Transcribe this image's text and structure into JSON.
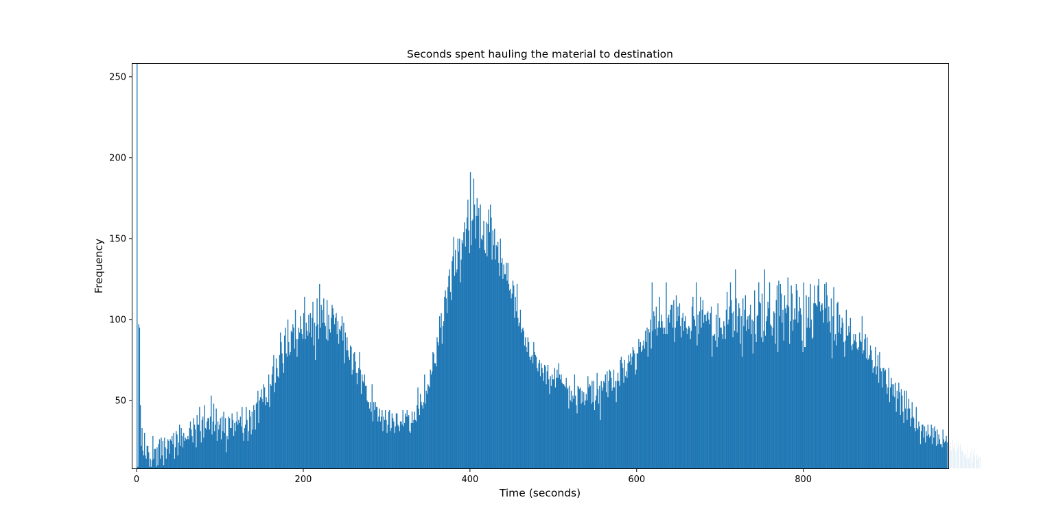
{
  "chart_data": {
    "type": "bar",
    "title": "Seconds spent hauling the material to destination",
    "xlabel": "Time (seconds)",
    "ylabel": "Frequency",
    "xlim": [
      -5,
      974
    ],
    "ylim": [
      8,
      258
    ],
    "xticks": [
      0,
      200,
      400,
      600,
      800
    ],
    "yticks": [
      50,
      100,
      150,
      200,
      250
    ],
    "grid": false,
    "legend": "none",
    "bar_color": "#1f77b4",
    "bin_width_seconds": 1,
    "x_start": 0,
    "x_end": 973,
    "values": [
      258,
      9,
      97,
      95,
      47,
      22,
      33,
      19,
      16,
      30,
      16,
      14,
      22,
      22,
      18,
      9,
      14,
      9,
      13,
      28,
      14,
      20,
      20,
      9,
      21,
      10,
      23,
      26,
      14,
      27,
      16,
      25,
      10,
      27,
      21,
      14,
      20,
      26,
      25,
      17,
      26,
      25,
      28,
      23,
      30,
      14,
      21,
      31,
      29,
      16,
      24,
      35,
      22,
      33,
      28,
      21,
      30,
      25,
      27,
      26,
      26,
      28,
      26,
      33,
      37,
      32,
      28,
      24,
      39,
      35,
      32,
      21,
      41,
      35,
      35,
      46,
      31,
      24,
      38,
      40,
      27,
      47,
      33,
      32,
      37,
      39,
      39,
      32,
      40,
      53,
      29,
      37,
      48,
      31,
      35,
      45,
      25,
      37,
      32,
      35,
      39,
      26,
      40,
      31,
      43,
      30,
      39,
      18,
      28,
      26,
      40,
      39,
      33,
      33,
      42,
      38,
      28,
      36,
      31,
      37,
      43,
      35,
      38,
      36,
      40,
      34,
      46,
      30,
      25,
      33,
      35,
      46,
      38,
      25,
      31,
      44,
      40,
      29,
      43,
      32,
      47,
      44,
      32,
      48,
      49,
      56,
      36,
      50,
      52,
      57,
      51,
      49,
      60,
      58,
      47,
      52,
      49,
      49,
      66,
      46,
      60,
      59,
      66,
      71,
      78,
      55,
      61,
      76,
      70,
      65,
      64,
      78,
      92,
      86,
      79,
      73,
      67,
      90,
      95,
      79,
      77,
      100,
      86,
      78,
      80,
      93,
      92,
      97,
      95,
      82,
      106,
      88,
      77,
      88,
      95,
      92,
      102,
      94,
      91,
      88,
      104,
      114,
      88,
      98,
      93,
      90,
      103,
      92,
      104,
      89,
      101,
      111,
      84,
      98,
      75,
      96,
      113,
      97,
      88,
      122,
      95,
      109,
      106,
      98,
      113,
      98,
      96,
      88,
      112,
      87,
      103,
      94,
      92,
      101,
      109,
      107,
      103,
      97,
      101,
      104,
      91,
      99,
      85,
      94,
      93,
      96,
      102,
      87,
      98,
      73,
      92,
      81,
      89,
      81,
      77,
      75,
      84,
      83,
      66,
      69,
      79,
      80,
      74,
      67,
      60,
      67,
      70,
      80,
      69,
      54,
      66,
      62,
      61,
      66,
      59,
      59,
      50,
      49,
      49,
      45,
      49,
      43,
      60,
      37,
      49,
      44,
      49,
      46,
      46,
      37,
      40,
      45,
      37,
      40,
      44,
      31,
      40,
      38,
      44,
      38,
      30,
      35,
      43,
      44,
      31,
      33,
      42,
      39,
      37,
      30,
      34,
      42,
      42,
      35,
      34,
      31,
      37,
      37,
      35,
      44,
      34,
      36,
      42,
      40,
      44,
      40,
      41,
      31,
      30,
      36,
      43,
      36,
      38,
      43,
      38,
      37,
      47,
      58,
      45,
      41,
      54,
      49,
      47,
      45,
      49,
      66,
      48,
      56,
      54,
      60,
      59,
      58,
      69,
      66,
      68,
      80,
      79,
      73,
      73,
      71,
      89,
      86,
      84,
      102,
      95,
      104,
      85,
      96,
      99,
      114,
      118,
      113,
      104,
      120,
      127,
      131,
      117,
      112,
      136,
      139,
      151,
      127,
      143,
      129,
      131,
      150,
      142,
      150,
      123,
      137,
      149,
      147,
      154,
      160,
      145,
      156,
      163,
      174,
      155,
      141,
      191,
      146,
      161,
      162,
      187,
      171,
      150,
      164,
      175,
      164,
      169,
      144,
      171,
      150,
      149,
      152,
      161,
      143,
      141,
      160,
      139,
      159,
      168,
      154,
      171,
      163,
      137,
      155,
      146,
      156,
      137,
      146,
      145,
      148,
      135,
      127,
      150,
      135,
      138,
      125,
      134,
      128,
      128,
      135,
      124,
      135,
      122,
      118,
      119,
      113,
      116,
      124,
      121,
      101,
      114,
      105,
      122,
      101,
      96,
      98,
      106,
      92,
      94,
      95,
      93,
      84,
      89,
      83,
      80,
      89,
      86,
      77,
      75,
      77,
      78,
      73,
      86,
      80,
      78,
      77,
      70,
      68,
      73,
      75,
      65,
      73,
      70,
      67,
      62,
      72,
      71,
      60,
      68,
      72,
      63,
      54,
      65,
      59,
      66,
      63,
      63,
      70,
      58,
      64,
      69,
      64,
      73,
      66,
      63,
      66,
      61,
      60,
      60,
      59,
      58,
      64,
      57,
      58,
      45,
      59,
      50,
      56,
      49,
      53,
      51,
      66,
      53,
      47,
      42,
      59,
      58,
      57,
      58,
      48,
      56,
      49,
      55,
      47,
      50,
      54,
      50,
      65,
      58,
      60,
      59,
      48,
      62,
      49,
      62,
      44,
      50,
      53,
      67,
      57,
      48,
      59,
      38,
      62,
      56,
      58,
      62,
      61,
      66,
      55,
      68,
      52,
      62,
      69,
      68,
      64,
      56,
      58,
      69,
      58,
      62,
      49,
      62,
      67,
      62,
      59,
      75,
      77,
      73,
      70,
      61,
      75,
      65,
      68,
      64,
      73,
      78,
      74,
      79,
      72,
      77,
      83,
      81,
      79,
      66,
      69,
      79,
      79,
      88,
      83,
      86,
      80,
      81,
      84,
      87,
      82,
      93,
      86,
      95,
      77,
      94,
      92,
      100,
      82,
      123,
      93,
      105,
      102,
      94,
      108,
      90,
      95,
      99,
      114,
      95,
      103,
      99,
      95,
      91,
      95,
      91,
      123,
      91,
      101,
      103,
      98,
      106,
      109,
      109,
      95,
      112,
      86,
      95,
      115,
      99,
      108,
      102,
      110,
      96,
      89,
      101,
      104,
      93,
      99,
      102,
      95,
      91,
      94,
      96,
      95,
      88,
      93,
      108,
      114,
      102,
      100,
      96,
      123,
      84,
      103,
      91,
      105,
      114,
      95,
      106,
      112,
      98,
      103,
      103,
      99,
      104,
      105,
      100,
      97,
      104,
      108,
      77,
      90,
      90,
      91,
      87,
      103,
      83,
      110,
      89,
      101,
      95,
      95,
      91,
      88,
      99,
      96,
      88,
      106,
      117,
      97,
      100,
      108,
      123,
      112,
      104,
      89,
      105,
      93,
      131,
      113,
      92,
      102,
      110,
      107,
      85,
      102,
      77,
      113,
      96,
      106,
      115,
      93,
      100,
      102,
      94,
      103,
      109,
      91,
      100,
      79,
      99,
      118,
      91,
      86,
      102,
      103,
      123,
      111,
      110,
      89,
      116,
      86,
      93,
      131,
      90,
      99,
      102,
      111,
      107,
      123,
      97,
      96,
      90,
      95,
      105,
      104,
      85,
      112,
      121,
      80,
      124,
      102,
      122,
      116,
      98,
      106,
      87,
      115,
      107,
      104,
      109,
      126,
      108,
      85,
      99,
      121,
      116,
      93,
      100,
      107,
      100,
      122,
      118,
      98,
      105,
      114,
      107,
      103,
      87,
      80,
      123,
      83,
      83,
      115,
      95,
      101,
      114,
      95,
      122,
      100,
      88,
      89,
      110,
      121,
      110,
      109,
      108,
      121,
      125,
      111,
      105,
      109,
      110,
      106,
      98,
      122,
      107,
      123,
      115,
      98,
      108,
      99,
      92,
      113,
      76,
      102,
      120,
      87,
      91,
      84,
      110,
      111,
      92,
      103,
      91,
      95,
      101,
      98,
      86,
      77,
      87,
      106,
      90,
      90,
      96,
      92,
      101,
      84,
      81,
      85,
      91,
      87,
      91,
      86,
      82,
      81,
      83,
      92,
      87,
      86,
      102,
      79,
      81,
      88,
      91,
      76,
      89,
      75,
      76,
      78,
      84,
      81,
      75,
      67,
      70,
      71,
      83,
      66,
      71,
      78,
      61,
      80,
      70,
      68,
      58,
      70,
      70,
      68,
      69,
      60,
      54,
      58,
      70,
      49,
      58,
      64,
      60,
      53,
      60,
      52,
      61,
      43,
      56,
      51,
      61,
      55,
      41,
      57,
      53,
      43,
      36,
      56,
      45,
      56,
      38,
      45,
      51,
      45,
      34,
      39,
      49,
      40,
      39,
      33,
      31,
      46,
      33,
      32,
      37,
      34,
      23,
      31,
      35,
      35,
      27,
      34,
      24,
      31,
      28,
      35,
      29,
      27,
      28,
      35,
      23,
      33,
      27,
      34,
      31,
      22,
      32,
      23,
      29,
      26,
      23,
      23,
      21,
      32,
      26,
      24,
      25,
      28,
      24,
      25,
      19,
      22,
      19,
      24,
      19,
      26,
      21,
      23,
      20,
      18,
      25,
      20,
      23,
      22,
      23,
      21,
      19,
      18,
      19,
      16,
      18,
      17,
      14,
      20,
      14,
      15,
      11,
      18,
      20,
      12,
      17,
      20,
      15,
      16,
      17,
      13,
      16,
      15,
      15
    ]
  }
}
